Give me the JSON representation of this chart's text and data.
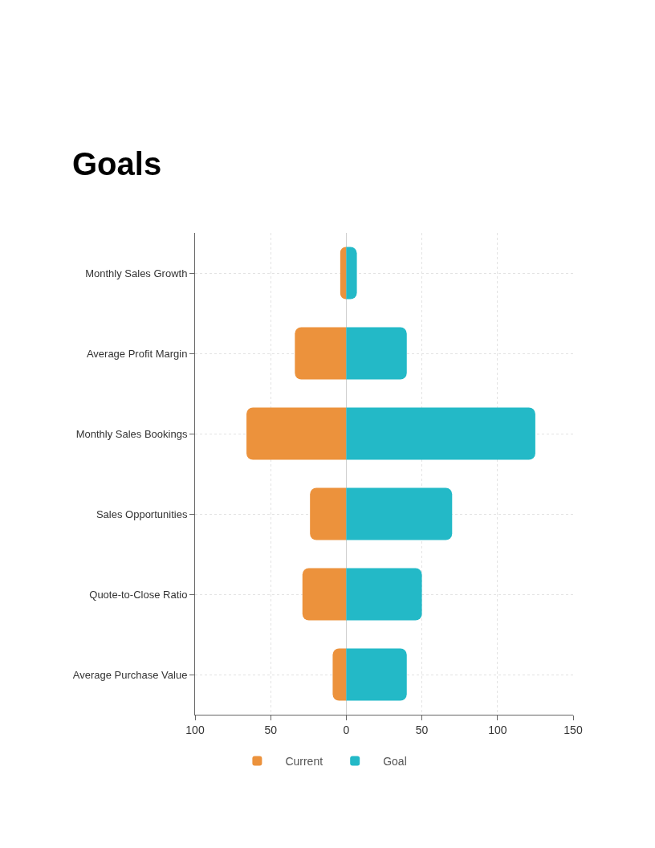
{
  "chart_data": {
    "type": "bar",
    "title": "Goals",
    "orientation": "horizontal",
    "stacked": true,
    "categories": [
      "Monthly Sales Growth",
      "Average Profit Margin",
      "Monthly Sales Bookings",
      "Sales Opportunities",
      "Quote-to-Close Ratio",
      "Average Purchase Value"
    ],
    "series": [
      {
        "name": "Current",
        "color": "#ec923c",
        "values": [
          -4,
          -34,
          -66,
          -24,
          -29,
          -9
        ]
      },
      {
        "name": "Goal",
        "color": "#23b9c7",
        "values": [
          7,
          40,
          125,
          70,
          50,
          40
        ]
      }
    ],
    "xlim": [
      -100,
      150
    ],
    "xticks": [
      {
        "value": -100,
        "label": "100"
      },
      {
        "value": -50,
        "label": "50"
      },
      0,
      50,
      100,
      150
    ],
    "grid": true,
    "legend": "bottom"
  }
}
